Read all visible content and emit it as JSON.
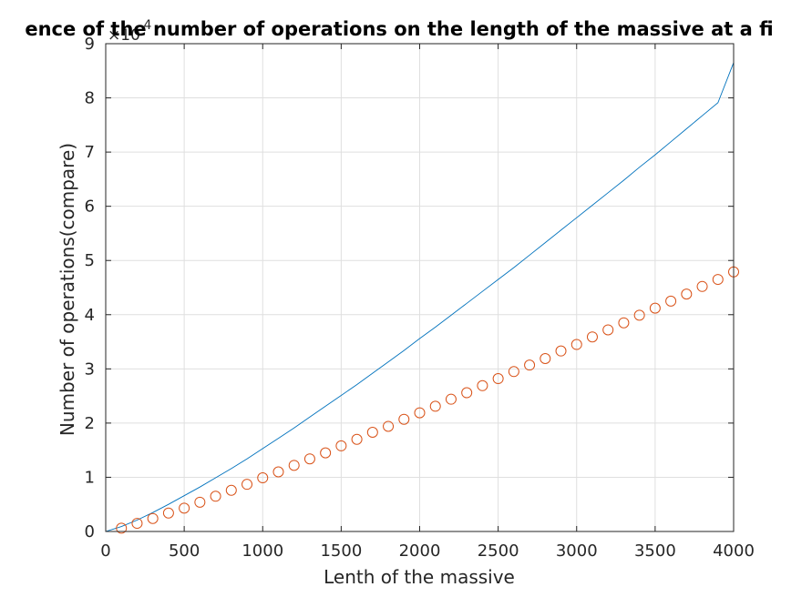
{
  "chart_data": {
    "type": "scatter",
    "title": "ence of the number of operations on the length of the massive at a fi",
    "xlabel": "Lenth of the massive",
    "ylabel": "Number of operations(compare)",
    "xlim": [
      0,
      4000
    ],
    "ylim": [
      0,
      90000
    ],
    "xticks": [
      0,
      500,
      1000,
      1500,
      2000,
      2500,
      3000,
      3500,
      4000
    ],
    "xtick_labels": [
      "0",
      "500",
      "1000",
      "1500",
      "2000",
      "2500",
      "3000",
      "3500",
      "4000"
    ],
    "yticks": [
      0,
      10000,
      20000,
      30000,
      40000,
      50000,
      60000,
      70000,
      80000,
      90000
    ],
    "ytick_labels": [
      "0",
      "1",
      "2",
      "3",
      "4",
      "5",
      "6",
      "7",
      "8",
      "9"
    ],
    "y_exponent": {
      "base": "10",
      "power": "4"
    },
    "grid": true,
    "series": [
      {
        "style": "line",
        "color": "#0072BD",
        "x": [
          0,
          100,
          200,
          300,
          400,
          500,
          600,
          700,
          800,
          900,
          1000,
          1100,
          1200,
          1300,
          1400,
          1500,
          1600,
          1700,
          1800,
          1900,
          2000,
          2100,
          2200,
          2300,
          2400,
          2500,
          2600,
          2700,
          2800,
          2900,
          3000,
          3100,
          3200,
          3300,
          3400,
          3500,
          3600,
          3700,
          3800,
          3900,
          4000
        ],
        "y": [
          0,
          900,
          2100,
          3500,
          5000,
          6600,
          8200,
          9900,
          11600,
          13400,
          15300,
          17200,
          19100,
          21100,
          23100,
          25100,
          27100,
          29200,
          31300,
          33400,
          35600,
          37700,
          39900,
          42100,
          44300,
          46500,
          48700,
          51000,
          53300,
          55600,
          57900,
          60200,
          62500,
          64800,
          67200,
          69500,
          71900,
          74300,
          76700,
          79100,
          86500
        ]
      },
      {
        "style": "markers",
        "marker": "circle",
        "color": "#D95319",
        "x": [
          100,
          200,
          300,
          400,
          500,
          600,
          700,
          800,
          900,
          1000,
          1100,
          1200,
          1300,
          1400,
          1500,
          1600,
          1700,
          1800,
          1900,
          2000,
          2100,
          2200,
          2300,
          2400,
          2500,
          2600,
          2700,
          2800,
          2900,
          3000,
          3100,
          3200,
          3300,
          3400,
          3500,
          3600,
          3700,
          3800,
          3900,
          4000
        ],
        "y": [
          600,
          1500,
          2400,
          3400,
          4300,
          5400,
          6500,
          7600,
          8700,
          9900,
          11000,
          12200,
          13400,
          14500,
          15800,
          17000,
          18300,
          19400,
          20700,
          21900,
          23100,
          24400,
          25600,
          26900,
          28200,
          29500,
          30700,
          31900,
          33300,
          34500,
          35900,
          37200,
          38500,
          39900,
          41200,
          42500,
          43800,
          45200,
          46500,
          47900
        ]
      }
    ]
  }
}
